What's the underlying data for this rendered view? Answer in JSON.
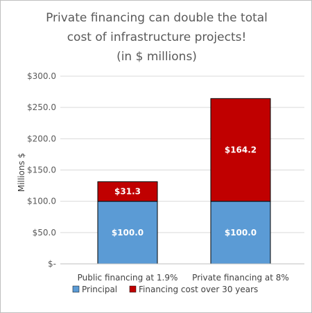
{
  "chart_data": {
    "type": "bar",
    "stacked": true,
    "title": [
      "Private financing can double the total",
      "cost of infrastructure projects!",
      "(in $ millions)"
    ],
    "categories": [
      "Public financing at 1.9%",
      "Private financing at 8%"
    ],
    "series": [
      {
        "name": "Principal",
        "values": [
          100.0,
          100.0
        ],
        "labels": [
          "$100.0",
          "$100.0"
        ],
        "color": "#5b9bd5"
      },
      {
        "name": "Financing cost over 30 years",
        "values": [
          31.3,
          164.2
        ],
        "labels": [
          "$31.3",
          "$164.2"
        ],
        "color": "#c00000"
      }
    ],
    "ylabel": "Millions $",
    "ylim": [
      0,
      300
    ],
    "yticks": [
      0,
      50,
      100,
      150,
      200,
      250,
      300
    ],
    "ytick_labels": [
      "$-",
      "$50.0",
      "$100.0",
      "$150.0",
      "$200.0",
      "$250.0",
      "$300.0"
    ],
    "grid": true,
    "legend_position": "bottom"
  }
}
